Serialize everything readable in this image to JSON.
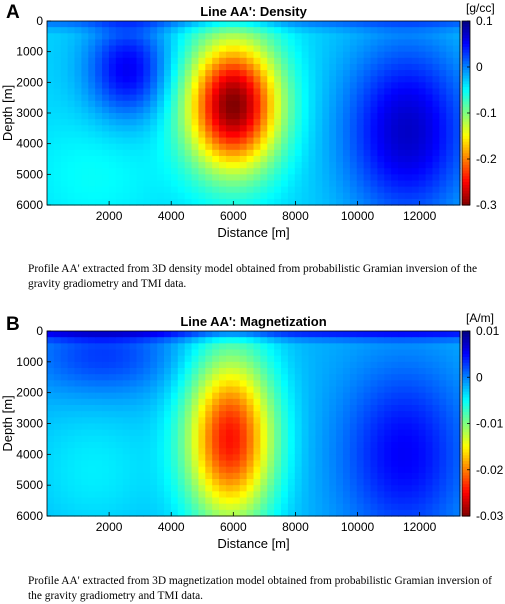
{
  "chart_data": [
    {
      "id": "A",
      "panel_label": "A",
      "type": "heatmap",
      "title": "Line AA': Density",
      "xlabel": "Distance [m]",
      "ylabel": "Depth [m]",
      "xlim": [
        0,
        13300
      ],
      "ylim": [
        6000,
        0
      ],
      "xticks": [
        2000,
        4000,
        6000,
        8000,
        10000,
        12000
      ],
      "yticks": [
        0,
        1000,
        2000,
        3000,
        4000,
        5000,
        6000
      ],
      "colorbar": {
        "unit": "[g/cc]",
        "min": -0.3,
        "max": 0.1,
        "ticks": [
          0.1,
          0,
          -0.1,
          -0.2,
          -0.3
        ],
        "colormap": "jet-reversed (dark red = low, dark blue = high)"
      },
      "anomaly": {
        "center_distance_m": 6000,
        "center_depth_m": 2700,
        "min_value": -0.3
      },
      "caption": "Profile AA' extracted from 3D density model obtained from probabilistic Gramian inversion of the gravity gradiometry and TMI data."
    },
    {
      "id": "B",
      "panel_label": "B",
      "type": "heatmap",
      "title": "Line AA': Magnetization",
      "xlabel": "Distance [m]",
      "ylabel": "Depth [m]",
      "xlim": [
        0,
        13300
      ],
      "ylim": [
        6000,
        0
      ],
      "xticks": [
        2000,
        4000,
        6000,
        8000,
        10000,
        12000
      ],
      "yticks": [
        0,
        1000,
        2000,
        3000,
        4000,
        5000,
        6000
      ],
      "colorbar": {
        "unit": "[A/m]",
        "min": -0.03,
        "max": 0.01,
        "ticks": [
          0.01,
          0,
          -0.01,
          -0.02,
          -0.03
        ],
        "colormap": "jet-reversed (dark red = low, dark blue = high)"
      },
      "anomaly": {
        "center_distance_m": 6000,
        "center_depth_m": 3500,
        "min_value": -0.022
      },
      "caption": "Profile AA' extracted from 3D magnetization model obtained from probabilistic Gramian inversion of the gravity gradiometry and TMI data."
    }
  ]
}
